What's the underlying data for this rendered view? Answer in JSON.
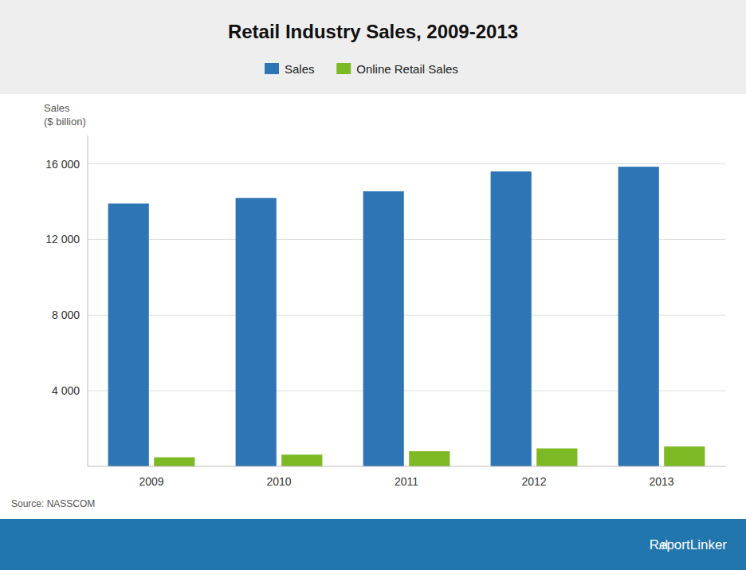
{
  "chart_data": {
    "type": "bar",
    "title": "Retail Industry Sales, 2009-2013",
    "categories": [
      "2009",
      "2010",
      "2011",
      "2012",
      "2013"
    ],
    "series": [
      {
        "name": "Sales",
        "color": "#2E75B6",
        "values": [
          13900,
          14200,
          14550,
          15600,
          15850
        ]
      },
      {
        "name": "Online Retail Sales",
        "color": "#7DB925",
        "values": [
          480,
          620,
          800,
          950,
          1050
        ]
      }
    ],
    "ylabel": [
      "Sales",
      "($ billion)"
    ],
    "ylim": [
      0,
      17500
    ],
    "yticks": [
      {
        "value": 4000,
        "label": "4 000"
      },
      {
        "value": 8000,
        "label": "8 000"
      },
      {
        "value": 12000,
        "label": "12 000"
      },
      {
        "value": 16000,
        "label": "16 000"
      }
    ],
    "grid": true,
    "legend": "top",
    "annotations": [
      "Source: NASSCOM",
      ".ıl",
      "ReportLinker"
    ]
  }
}
